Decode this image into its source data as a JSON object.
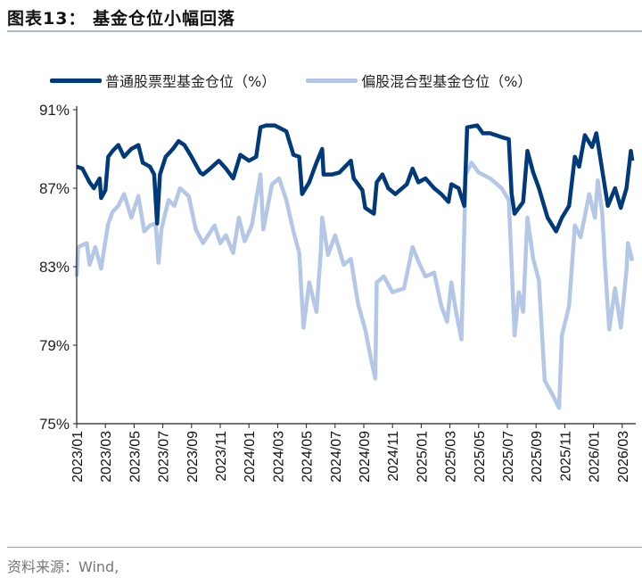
{
  "header": {
    "title": "图表13：  基金仓位小幅回落"
  },
  "footer": {
    "source": "资料来源：Wind,"
  },
  "chart_data": {
    "type": "line",
    "title": "图表13：基金仓位小幅回落",
    "x_unit": "months since 2023/01",
    "xlim": [
      0,
      39
    ],
    "ylim": [
      75,
      91
    ],
    "yticks": [
      91,
      87,
      83,
      79,
      75
    ],
    "ytick_labels": [
      "91%",
      "87%",
      "83%",
      "79%",
      "75%"
    ],
    "xtick_labels": [
      "2023/01",
      "2023/03",
      "2023/05",
      "2023/07",
      "2023/09",
      "2023/11",
      "2024/01",
      "2024/03",
      "2024/05",
      "2024/07",
      "2024/09",
      "2024/11",
      "2025/01",
      "2025/03",
      "2025/05",
      "2025/07",
      "2025/09",
      "2025/11",
      "2026/01",
      "2026/03"
    ],
    "legend_position": "top",
    "grid": false,
    "series": [
      {
        "name": "普通股票型基金仓位（%）",
        "color": "#003a7a",
        "points": [
          [
            0,
            88.1
          ],
          [
            0.4,
            88.0
          ],
          [
            0.9,
            87.3
          ],
          [
            1.2,
            87.0
          ],
          [
            1.6,
            87.5
          ],
          [
            1.7,
            86.5
          ],
          [
            2.0,
            86.9
          ],
          [
            2.2,
            88.6
          ],
          [
            2.5,
            88.9
          ],
          [
            2.9,
            89.2
          ],
          [
            3.3,
            88.6
          ],
          [
            3.8,
            89.0
          ],
          [
            4.3,
            89.2
          ],
          [
            4.6,
            88.3
          ],
          [
            5.1,
            88.1
          ],
          [
            5.4,
            87.7
          ],
          [
            5.6,
            85.2
          ],
          [
            5.8,
            87.7
          ],
          [
            6.2,
            88.6
          ],
          [
            6.7,
            89.0
          ],
          [
            7.1,
            89.4
          ],
          [
            7.5,
            89.2
          ],
          [
            8.0,
            88.6
          ],
          [
            8.6,
            87.8
          ],
          [
            8.8,
            87.7
          ],
          [
            9.3,
            88.0
          ],
          [
            9.9,
            88.4
          ],
          [
            10.4,
            88.0
          ],
          [
            10.9,
            87.5
          ],
          [
            11.4,
            88.7
          ],
          [
            12.0,
            88.4
          ],
          [
            12.5,
            88.6
          ],
          [
            12.8,
            90.1
          ],
          [
            13.2,
            90.2
          ],
          [
            13.8,
            90.2
          ],
          [
            14.6,
            89.9
          ],
          [
            15.1,
            88.7
          ],
          [
            15.5,
            88.6
          ],
          [
            15.7,
            86.7
          ],
          [
            16.2,
            87.3
          ],
          [
            16.7,
            88.3
          ],
          [
            17.1,
            89.0
          ],
          [
            17.2,
            87.7
          ],
          [
            17.8,
            87.7
          ],
          [
            18.3,
            87.8
          ],
          [
            19.1,
            88.4
          ],
          [
            19.3,
            87.5
          ],
          [
            19.9,
            86.9
          ],
          [
            20.1,
            86.0
          ],
          [
            20.7,
            85.7
          ],
          [
            20.9,
            87.3
          ],
          [
            21.3,
            87.7
          ],
          [
            21.7,
            87.0
          ],
          [
            22.2,
            86.7
          ],
          [
            23.0,
            87.2
          ],
          [
            23.4,
            88.0
          ],
          [
            23.8,
            87.3
          ],
          [
            24.3,
            87.5
          ],
          [
            24.9,
            87.0
          ],
          [
            25.4,
            86.7
          ],
          [
            25.9,
            86.3
          ],
          [
            26.1,
            87.2
          ],
          [
            26.6,
            87.0
          ],
          [
            27.0,
            86.1
          ],
          [
            27.2,
            90.1
          ],
          [
            27.9,
            90.2
          ],
          [
            28.3,
            89.8
          ],
          [
            28.8,
            89.8
          ],
          [
            29.6,
            89.6
          ],
          [
            30.1,
            89.5
          ],
          [
            30.3,
            86.7
          ],
          [
            30.5,
            85.7
          ],
          [
            31.1,
            86.3
          ],
          [
            31.4,
            88.9
          ],
          [
            31.8,
            87.8
          ],
          [
            32.2,
            87.0
          ],
          [
            32.8,
            85.5
          ],
          [
            33.4,
            84.8
          ],
          [
            33.8,
            85.5
          ],
          [
            34.3,
            86.1
          ],
          [
            34.7,
            88.6
          ],
          [
            35.0,
            88.1
          ],
          [
            35.4,
            89.7
          ],
          [
            35.9,
            89.1
          ],
          [
            36.2,
            89.8
          ],
          [
            36.4,
            88.9
          ],
          [
            37.0,
            86.1
          ],
          [
            37.5,
            87.0
          ],
          [
            37.9,
            86.0
          ],
          [
            38.3,
            87.0
          ],
          [
            38.6,
            88.9
          ],
          [
            38.7,
            88.4
          ]
        ]
      },
      {
        "name": "偏股混合型基金仓位（%）",
        "color": "#b4c7e7",
        "points": [
          [
            0,
            82.5
          ],
          [
            0.1,
            84.0
          ],
          [
            0.7,
            84.2
          ],
          [
            0.9,
            83.1
          ],
          [
            1.3,
            84.0
          ],
          [
            1.7,
            82.9
          ],
          [
            2.0,
            84.3
          ],
          [
            2.2,
            85.2
          ],
          [
            2.5,
            85.8
          ],
          [
            2.9,
            86.1
          ],
          [
            3.3,
            86.7
          ],
          [
            3.6,
            86.0
          ],
          [
            3.8,
            85.5
          ],
          [
            4.3,
            86.6
          ],
          [
            4.7,
            84.8
          ],
          [
            5.1,
            85.1
          ],
          [
            5.5,
            85.2
          ],
          [
            5.7,
            83.2
          ],
          [
            5.9,
            84.9
          ],
          [
            6.4,
            86.4
          ],
          [
            6.8,
            86.1
          ],
          [
            7.2,
            87.0
          ],
          [
            7.8,
            86.6
          ],
          [
            8.3,
            84.9
          ],
          [
            8.8,
            84.2
          ],
          [
            9.6,
            85.1
          ],
          [
            10.0,
            84.2
          ],
          [
            10.4,
            84.6
          ],
          [
            10.9,
            83.7
          ],
          [
            11.3,
            85.5
          ],
          [
            11.7,
            84.3
          ],
          [
            12.2,
            85.1
          ],
          [
            12.8,
            87.7
          ],
          [
            13.0,
            84.9
          ],
          [
            13.6,
            87.2
          ],
          [
            14.1,
            87.5
          ],
          [
            14.6,
            86.4
          ],
          [
            15.1,
            84.8
          ],
          [
            15.5,
            83.7
          ],
          [
            15.8,
            79.9
          ],
          [
            16.2,
            82.2
          ],
          [
            16.7,
            80.7
          ],
          [
            17.0,
            83.7
          ],
          [
            17.1,
            85.5
          ],
          [
            17.5,
            83.6
          ],
          [
            18.0,
            84.6
          ],
          [
            18.6,
            83.1
          ],
          [
            19.1,
            83.4
          ],
          [
            19.6,
            81.1
          ],
          [
            20.1,
            79.8
          ],
          [
            20.5,
            78.3
          ],
          [
            20.8,
            77.3
          ],
          [
            20.9,
            82.2
          ],
          [
            21.4,
            82.5
          ],
          [
            22.0,
            81.7
          ],
          [
            22.8,
            81.9
          ],
          [
            23.4,
            84.0
          ],
          [
            23.9,
            83.1
          ],
          [
            24.3,
            82.5
          ],
          [
            24.9,
            82.7
          ],
          [
            25.4,
            81.0
          ],
          [
            25.8,
            80.2
          ],
          [
            26.1,
            82.2
          ],
          [
            26.4,
            80.8
          ],
          [
            26.8,
            79.3
          ],
          [
            27.1,
            87.7
          ],
          [
            27.5,
            88.3
          ],
          [
            28.0,
            87.8
          ],
          [
            28.8,
            87.5
          ],
          [
            29.6,
            87.0
          ],
          [
            30.1,
            86.4
          ],
          [
            30.3,
            83.1
          ],
          [
            30.5,
            79.5
          ],
          [
            30.8,
            81.7
          ],
          [
            31.1,
            80.7
          ],
          [
            31.4,
            85.5
          ],
          [
            31.8,
            83.4
          ],
          [
            32.2,
            82.3
          ],
          [
            32.6,
            77.2
          ],
          [
            33.2,
            76.4
          ],
          [
            33.6,
            75.8
          ],
          [
            33.8,
            79.5
          ],
          [
            34.3,
            81.0
          ],
          [
            34.7,
            85.1
          ],
          [
            35.1,
            84.5
          ],
          [
            35.7,
            86.7
          ],
          [
            36.1,
            85.5
          ],
          [
            36.3,
            87.4
          ],
          [
            36.6,
            85.8
          ],
          [
            36.8,
            83.1
          ],
          [
            37.1,
            79.8
          ],
          [
            37.5,
            81.9
          ],
          [
            37.9,
            79.9
          ],
          [
            38.3,
            82.8
          ],
          [
            38.4,
            84.2
          ],
          [
            38.7,
            83.3
          ]
        ]
      }
    ]
  }
}
